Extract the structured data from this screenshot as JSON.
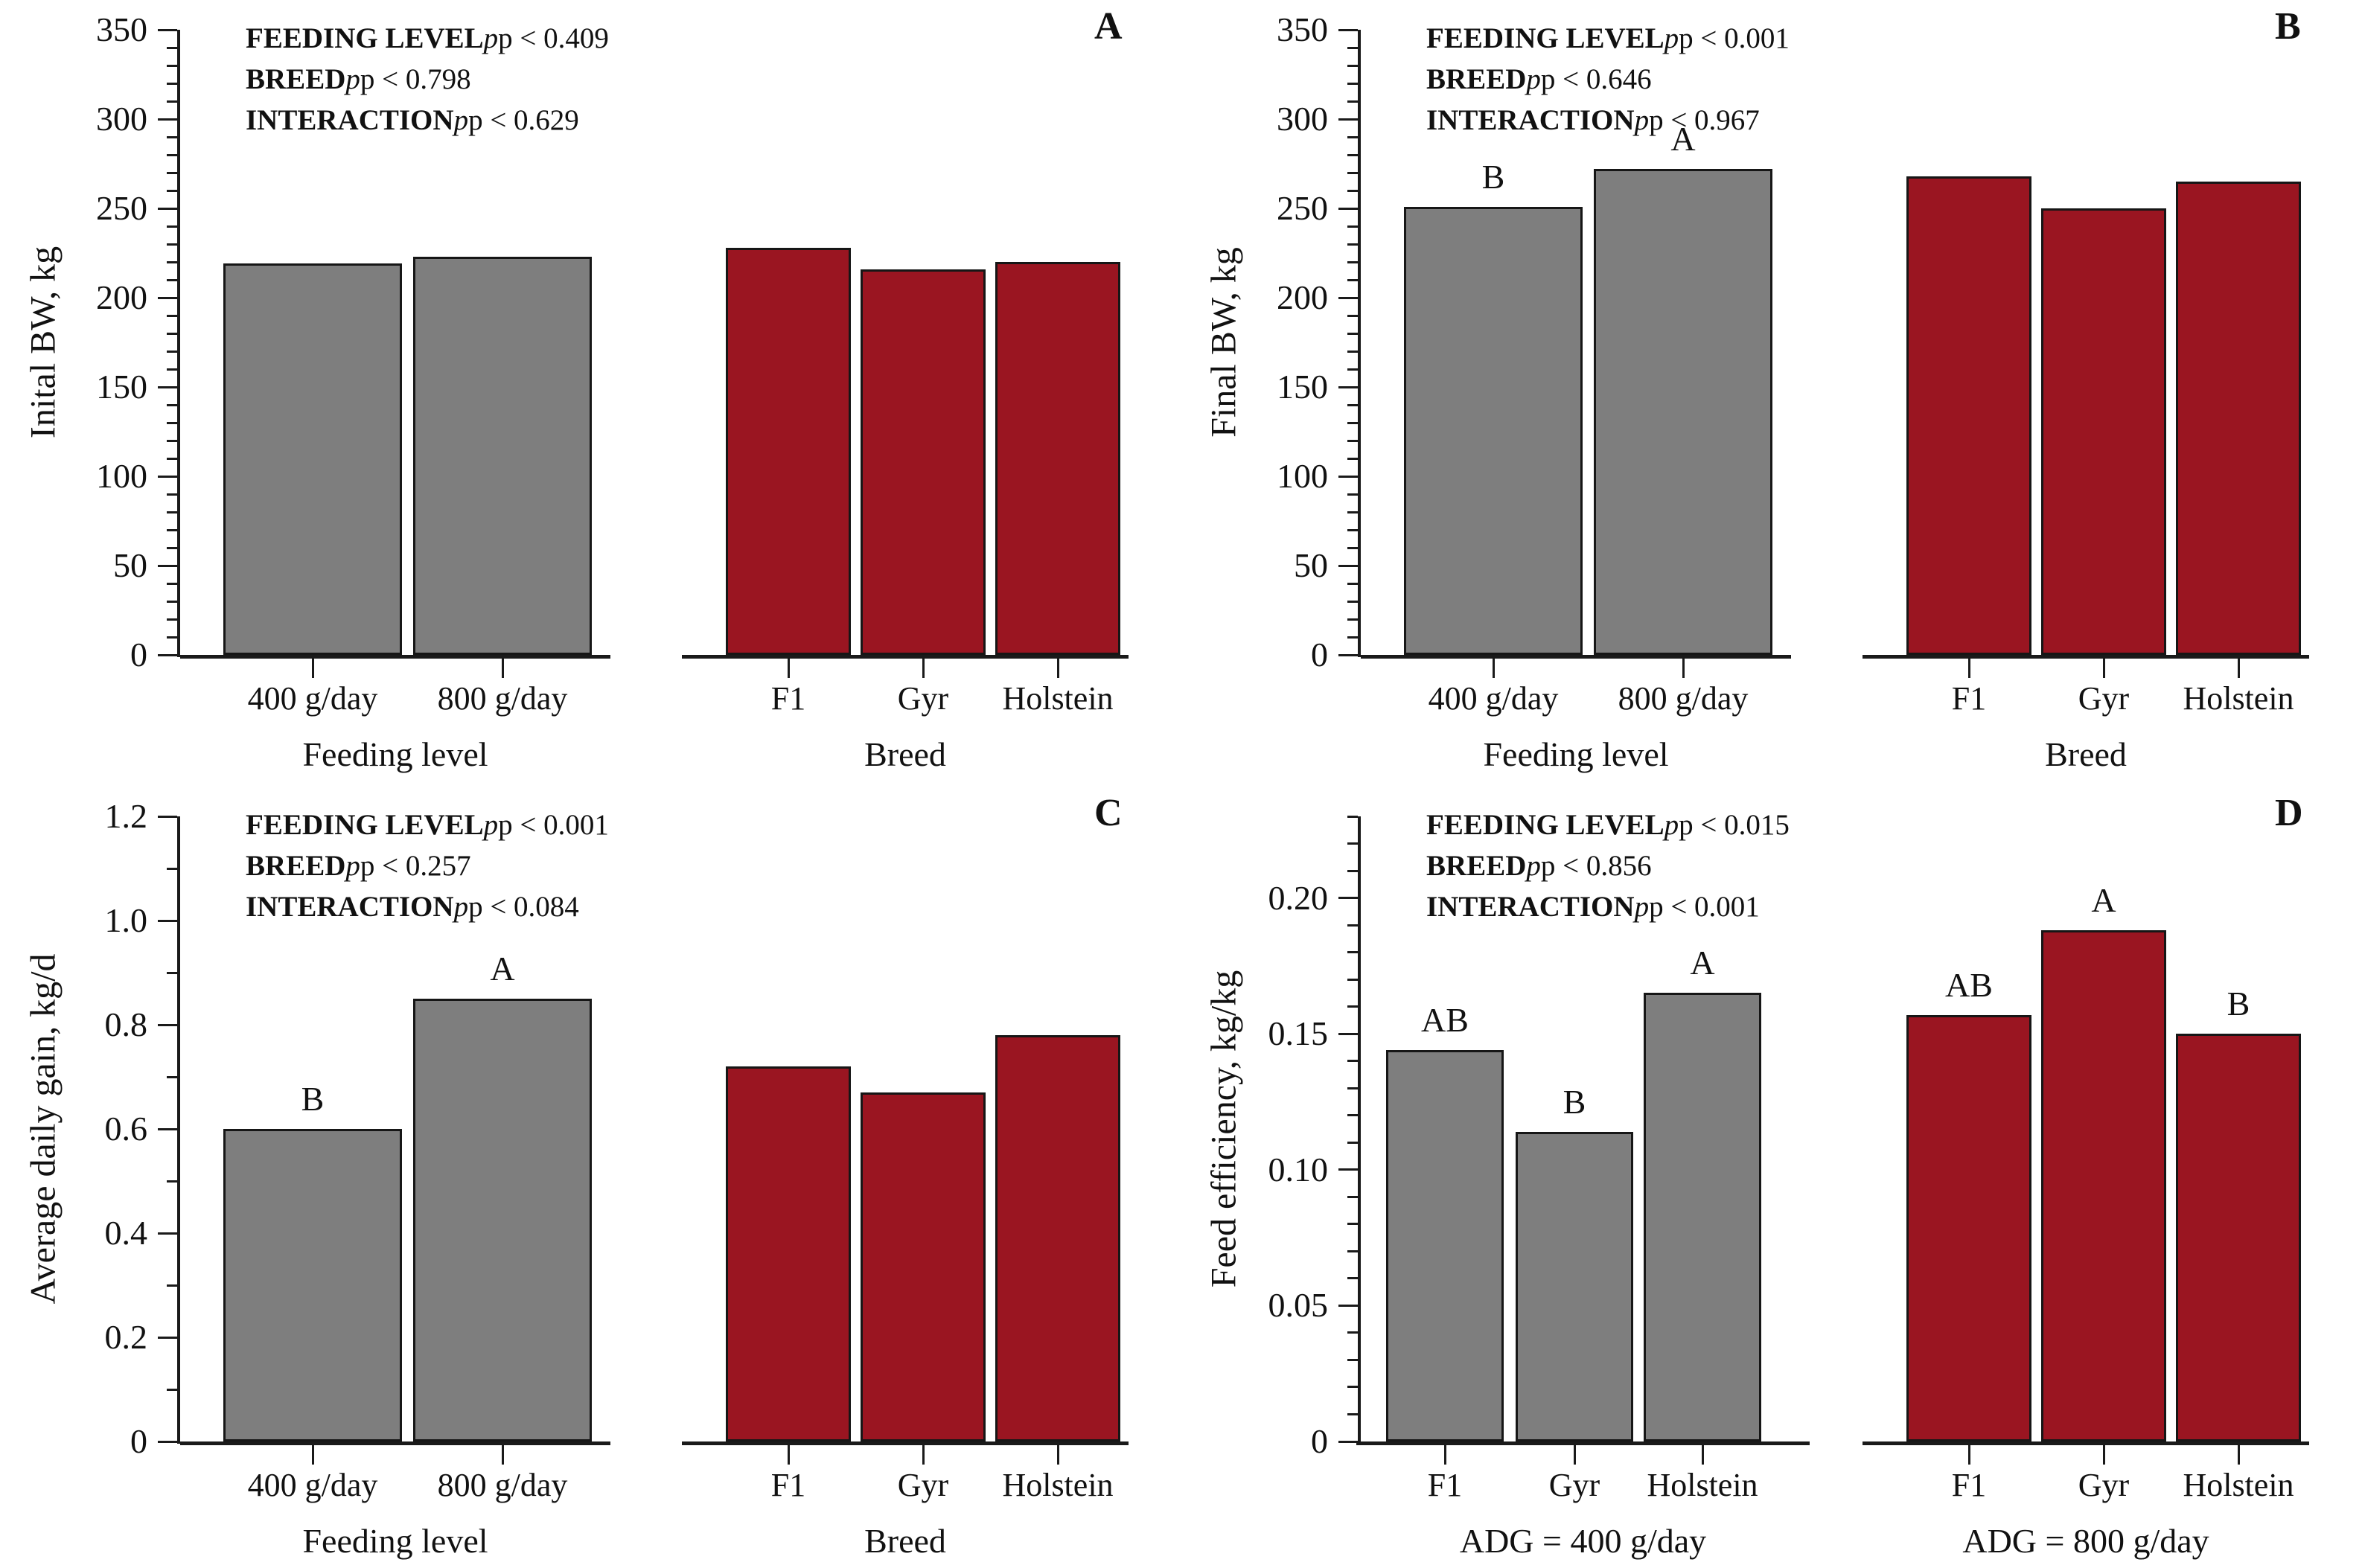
{
  "figure": {
    "background": "#ffffff",
    "panel_letters": [
      "A",
      "B",
      "C",
      "D"
    ]
  },
  "colors": {
    "gray_bar": "#7e7e7e",
    "red_bar": "#9a1521",
    "axis": "#1a1a1a",
    "text": "#111111"
  },
  "chart_data": [
    {
      "panel": "A",
      "type": "bar",
      "ylabel": "Inital BW, kg",
      "ylim": [
        0,
        350
      ],
      "major_step": 50,
      "minor_step": 10,
      "ytick_labels": [
        "0",
        "50",
        "100",
        "150",
        "200",
        "250",
        "300",
        "350"
      ],
      "grid": false,
      "stats": [
        {
          "label": "FEEDING LEVEL",
          "p": "p < 0.409"
        },
        {
          "label": "BREED",
          "p": "p < 0.798"
        },
        {
          "label": "INTERACTION",
          "p": "p < 0.629"
        }
      ],
      "groups": [
        {
          "xlabel": "Feeding level",
          "color_key": "gray_bar",
          "categories": [
            "400 g/day",
            "800 g/day"
          ],
          "values": [
            219,
            223
          ],
          "letters": [
            "",
            ""
          ]
        },
        {
          "xlabel": "Breed",
          "color_key": "red_bar",
          "categories": [
            "F1",
            "Gyr",
            "Holstein"
          ],
          "values": [
            228,
            216,
            220
          ],
          "letters": [
            "",
            "",
            ""
          ]
        }
      ]
    },
    {
      "panel": "B",
      "type": "bar",
      "ylabel": "Final BW, kg",
      "ylim": [
        0,
        350
      ],
      "major_step": 50,
      "minor_step": 10,
      "ytick_labels": [
        "0",
        "50",
        "100",
        "150",
        "200",
        "250",
        "300",
        "350"
      ],
      "grid": false,
      "stats": [
        {
          "label": "FEEDING LEVEL",
          "p": "p < 0.001"
        },
        {
          "label": "BREED",
          "p": "p < 0.646"
        },
        {
          "label": "INTERACTION",
          "p": "p < 0.967"
        }
      ],
      "groups": [
        {
          "xlabel": "Feeding level",
          "color_key": "gray_bar",
          "categories": [
            "400 g/day",
            "800 g/day"
          ],
          "values": [
            251,
            272
          ],
          "letters": [
            "B",
            "A"
          ]
        },
        {
          "xlabel": "Breed",
          "color_key": "red_bar",
          "categories": [
            "F1",
            "Gyr",
            "Holstein"
          ],
          "values": [
            268,
            250,
            265
          ],
          "letters": [
            "",
            "",
            ""
          ]
        }
      ]
    },
    {
      "panel": "C",
      "type": "bar",
      "ylabel": "Average daily gain, kg/d",
      "ylim": [
        0,
        1.2
      ],
      "major_step": 0.2,
      "minor_step": 0.1,
      "ytick_labels": [
        "0",
        "0.2",
        "0.4",
        "0.6",
        "0.8",
        "1.0",
        "1.2"
      ],
      "grid": false,
      "stats": [
        {
          "label": "FEEDING LEVEL",
          "p": "p < 0.001"
        },
        {
          "label": "BREED",
          "p": "p < 0.257"
        },
        {
          "label": "INTERACTION",
          "p": "p < 0.084"
        }
      ],
      "groups": [
        {
          "xlabel": "Feeding level",
          "color_key": "gray_bar",
          "categories": [
            "400 g/day",
            "800 g/day"
          ],
          "values": [
            0.6,
            0.85
          ],
          "letters": [
            "B",
            "A"
          ]
        },
        {
          "xlabel": "Breed",
          "color_key": "red_bar",
          "categories": [
            "F1",
            "Gyr",
            "Holstein"
          ],
          "values": [
            0.72,
            0.67,
            0.78
          ],
          "letters": [
            "",
            "",
            ""
          ]
        }
      ]
    },
    {
      "panel": "D",
      "type": "bar",
      "ylabel": "Feed efficiency, kg/kg",
      "ylim": [
        0,
        0.23
      ],
      "major_step": 0.05,
      "minor_step": 0.01,
      "major_top": 0.2,
      "ytick_labels": [
        "0",
        "0.05",
        "0.10",
        "0.15",
        "0.20"
      ],
      "grid": false,
      "stats": [
        {
          "label": "FEEDING LEVEL",
          "p": "p < 0.015"
        },
        {
          "label": "BREED",
          "p": "p < 0.856"
        },
        {
          "label": "INTERACTION",
          "p": "p < 0.001"
        }
      ],
      "groups": [
        {
          "xlabel": "ADG = 400 g/day",
          "color_key": "gray_bar",
          "categories": [
            "F1",
            "Gyr",
            "Holstein"
          ],
          "values": [
            0.144,
            0.114,
            0.165
          ],
          "letters": [
            "AB",
            "B",
            "A"
          ]
        },
        {
          "xlabel": "ADG = 800 g/day",
          "color_key": "red_bar",
          "categories": [
            "F1",
            "Gyr",
            "Holstein"
          ],
          "values": [
            0.157,
            0.188,
            0.15
          ],
          "letters": [
            "AB",
            "A",
            "B"
          ]
        }
      ]
    }
  ]
}
